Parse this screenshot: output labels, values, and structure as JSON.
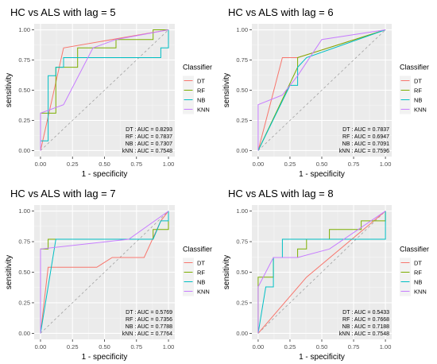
{
  "legend_title": "Classifier",
  "legend_entries": [
    "DT",
    "RF",
    "NB",
    "KNN"
  ],
  "colors": {
    "DT": "#F8766D",
    "RF": "#7CAE00",
    "NB": "#00BFC4",
    "KNN": "#C77CFF"
  },
  "chart_data": [
    {
      "type": "line",
      "title": "HC vs ALS with lag = 5",
      "xlabel": "1 - specificity",
      "ylabel": "sensitivity",
      "xlim": [
        0,
        1
      ],
      "ylim": [
        0,
        1
      ],
      "x_ticks": [
        "0.00",
        "0.25",
        "0.50",
        "0.75",
        "1.00"
      ],
      "y_ticks": [
        "0.00",
        "0.25",
        "0.50",
        "0.75",
        "1.00"
      ],
      "diagonal": true,
      "grid": true,
      "legend": "right",
      "series": [
        {
          "name": "DT",
          "points": [
            [
              0,
              0
            ],
            [
              0.18,
              0.85
            ],
            [
              1,
              1
            ]
          ]
        },
        {
          "name": "RF",
          "points": [
            [
              0,
              0
            ],
            [
              0,
              0.31
            ],
            [
              0.12,
              0.31
            ],
            [
              0.12,
              0.69
            ],
            [
              0.29,
              0.69
            ],
            [
              0.29,
              0.85
            ],
            [
              0.59,
              0.85
            ],
            [
              0.59,
              0.92
            ],
            [
              0.88,
              0.92
            ],
            [
              0.88,
              1
            ],
            [
              1,
              1
            ]
          ]
        },
        {
          "name": "NB",
          "points": [
            [
              0,
              0
            ],
            [
              0,
              0.08
            ],
            [
              0.06,
              0.08
            ],
            [
              0.06,
              0.62
            ],
            [
              0.12,
              0.62
            ],
            [
              0.12,
              0.69
            ],
            [
              0.18,
              0.69
            ],
            [
              0.18,
              0.77
            ],
            [
              0.47,
              0.77
            ],
            [
              0.47,
              0.77
            ],
            [
              0.94,
              0.77
            ],
            [
              0.94,
              0.85
            ],
            [
              1,
              0.85
            ],
            [
              1,
              1
            ]
          ]
        },
        {
          "name": "KNN",
          "points": [
            [
              0,
              0
            ],
            [
              0,
              0.31
            ],
            [
              0.18,
              0.38
            ],
            [
              0.41,
              0.85
            ],
            [
              0.59,
              0.92
            ],
            [
              1,
              1
            ]
          ]
        }
      ],
      "annotations": [
        "DT : AUC = 0.8293",
        "RF : AUC = 0.7837",
        "NB : AUC = 0.7307",
        "kNN : AUC = 0.7548"
      ]
    },
    {
      "type": "line",
      "title": "HC vs ALS with lag = 6",
      "xlabel": "1 - specificity",
      "ylabel": "sensitivity",
      "xlim": [
        0,
        1
      ],
      "ylim": [
        0,
        1
      ],
      "x_ticks": [
        "0.00",
        "0.25",
        "0.50",
        "0.75",
        "1.00"
      ],
      "y_ticks": [
        "0.00",
        "0.25",
        "0.50",
        "0.75",
        "1.00"
      ],
      "diagonal": true,
      "grid": true,
      "legend": "right",
      "series": [
        {
          "name": "DT",
          "points": [
            [
              0,
              0
            ],
            [
              0.19,
              0.77
            ],
            [
              0.31,
              0.77
            ],
            [
              1,
              1
            ]
          ]
        },
        {
          "name": "RF",
          "points": [
            [
              0,
              0
            ],
            [
              0.31,
              0.69
            ],
            [
              0.31,
              0.77
            ],
            [
              1,
              1
            ]
          ]
        },
        {
          "name": "NB",
          "points": [
            [
              0,
              0
            ],
            [
              0.25,
              0.54
            ],
            [
              0.31,
              0.54
            ],
            [
              0.31,
              0.69
            ],
            [
              0.38,
              0.77
            ],
            [
              1,
              1
            ]
          ]
        },
        {
          "name": "KNN",
          "points": [
            [
              0,
              0
            ],
            [
              0,
              0.38
            ],
            [
              0.19,
              0.46
            ],
            [
              0.31,
              0.62
            ],
            [
              0.5,
              0.92
            ],
            [
              1,
              1
            ]
          ]
        }
      ],
      "annotations": [
        "DT : AUC = 0.7837",
        "RF : AUC = 0.6947",
        "NB : AUC = 0.7091",
        "kNN : AUC = 0.7596"
      ]
    },
    {
      "type": "line",
      "title": "HC vs ALS with lag = 7",
      "xlabel": "1 - specificity",
      "ylabel": "sensitivity",
      "xlim": [
        0,
        1
      ],
      "ylim": [
        0,
        1
      ],
      "x_ticks": [
        "0.00",
        "0.25",
        "0.50",
        "0.75",
        "1.00"
      ],
      "y_ticks": [
        "0.00",
        "0.25",
        "0.50",
        "0.75",
        "1.00"
      ],
      "diagonal": true,
      "grid": true,
      "legend": "right",
      "series": [
        {
          "name": "DT",
          "points": [
            [
              0,
              0
            ],
            [
              0.06,
              0.54
            ],
            [
              0.44,
              0.54
            ],
            [
              0.56,
              0.62
            ],
            [
              0.81,
              0.62
            ],
            [
              0.94,
              0.92
            ],
            [
              1,
              1
            ]
          ]
        },
        {
          "name": "RF",
          "points": [
            [
              0,
              0
            ],
            [
              0,
              0.69
            ],
            [
              0.06,
              0.69
            ],
            [
              0.06,
              0.77
            ],
            [
              0.88,
              0.77
            ],
            [
              0.88,
              0.85
            ],
            [
              1,
              0.85
            ],
            [
              1,
              1
            ]
          ]
        },
        {
          "name": "NB",
          "points": [
            [
              0,
              0
            ],
            [
              0.12,
              0.77
            ],
            [
              0.88,
              0.77
            ],
            [
              0.94,
              0.92
            ],
            [
              1,
              0.92
            ],
            [
              1,
              1
            ]
          ]
        },
        {
          "name": "KNN",
          "points": [
            [
              0,
              0
            ],
            [
              0,
              0.69
            ],
            [
              0.69,
              0.77
            ],
            [
              1,
              1
            ]
          ]
        }
      ],
      "annotations": [
        "DT : AUC = 0.5769",
        "RF : AUC = 0.7356",
        "NB : AUC = 0.7788",
        "kNN : AUC = 0.7764"
      ]
    },
    {
      "type": "line",
      "title": "HC vs ALS with lag = 8",
      "xlabel": "1 - specificity",
      "ylabel": "sensitivity",
      "xlim": [
        0,
        1
      ],
      "ylim": [
        0,
        1
      ],
      "x_ticks": [
        "0.00",
        "0.25",
        "0.50",
        "0.75",
        "1.00"
      ],
      "y_ticks": [
        "0.00",
        "0.25",
        "0.50",
        "0.75",
        "1.00"
      ],
      "diagonal": true,
      "grid": true,
      "legend": "right",
      "series": [
        {
          "name": "DT",
          "points": [
            [
              0,
              0
            ],
            [
              0.38,
              0.46
            ],
            [
              1,
              1
            ]
          ]
        },
        {
          "name": "RF",
          "points": [
            [
              0,
              0
            ],
            [
              0,
              0.46
            ],
            [
              0.12,
              0.46
            ],
            [
              0.12,
              0.62
            ],
            [
              0.31,
              0.62
            ],
            [
              0.31,
              0.69
            ],
            [
              0.38,
              0.69
            ],
            [
              0.38,
              0.77
            ],
            [
              0.56,
              0.77
            ],
            [
              0.56,
              0.85
            ],
            [
              0.81,
              0.85
            ],
            [
              0.81,
              0.92
            ],
            [
              1,
              0.92
            ],
            [
              1,
              1
            ]
          ]
        },
        {
          "name": "NB",
          "points": [
            [
              0,
              0
            ],
            [
              0.06,
              0.38
            ],
            [
              0.12,
              0.38
            ],
            [
              0.12,
              0.62
            ],
            [
              0.19,
              0.62
            ],
            [
              0.19,
              0.77
            ],
            [
              1,
              0.77
            ],
            [
              1,
              1
            ]
          ]
        },
        {
          "name": "KNN",
          "points": [
            [
              0,
              0
            ],
            [
              0,
              0.38
            ],
            [
              0.12,
              0.62
            ],
            [
              0.31,
              0.62
            ],
            [
              0.56,
              0.69
            ],
            [
              1,
              1
            ]
          ]
        }
      ],
      "annotations": [
        "DT : AUC = 0.5433",
        "RF : AUC = 0.7668",
        "NB : AUC = 0.7188",
        "kNN : AUC = 0.7548"
      ]
    }
  ]
}
